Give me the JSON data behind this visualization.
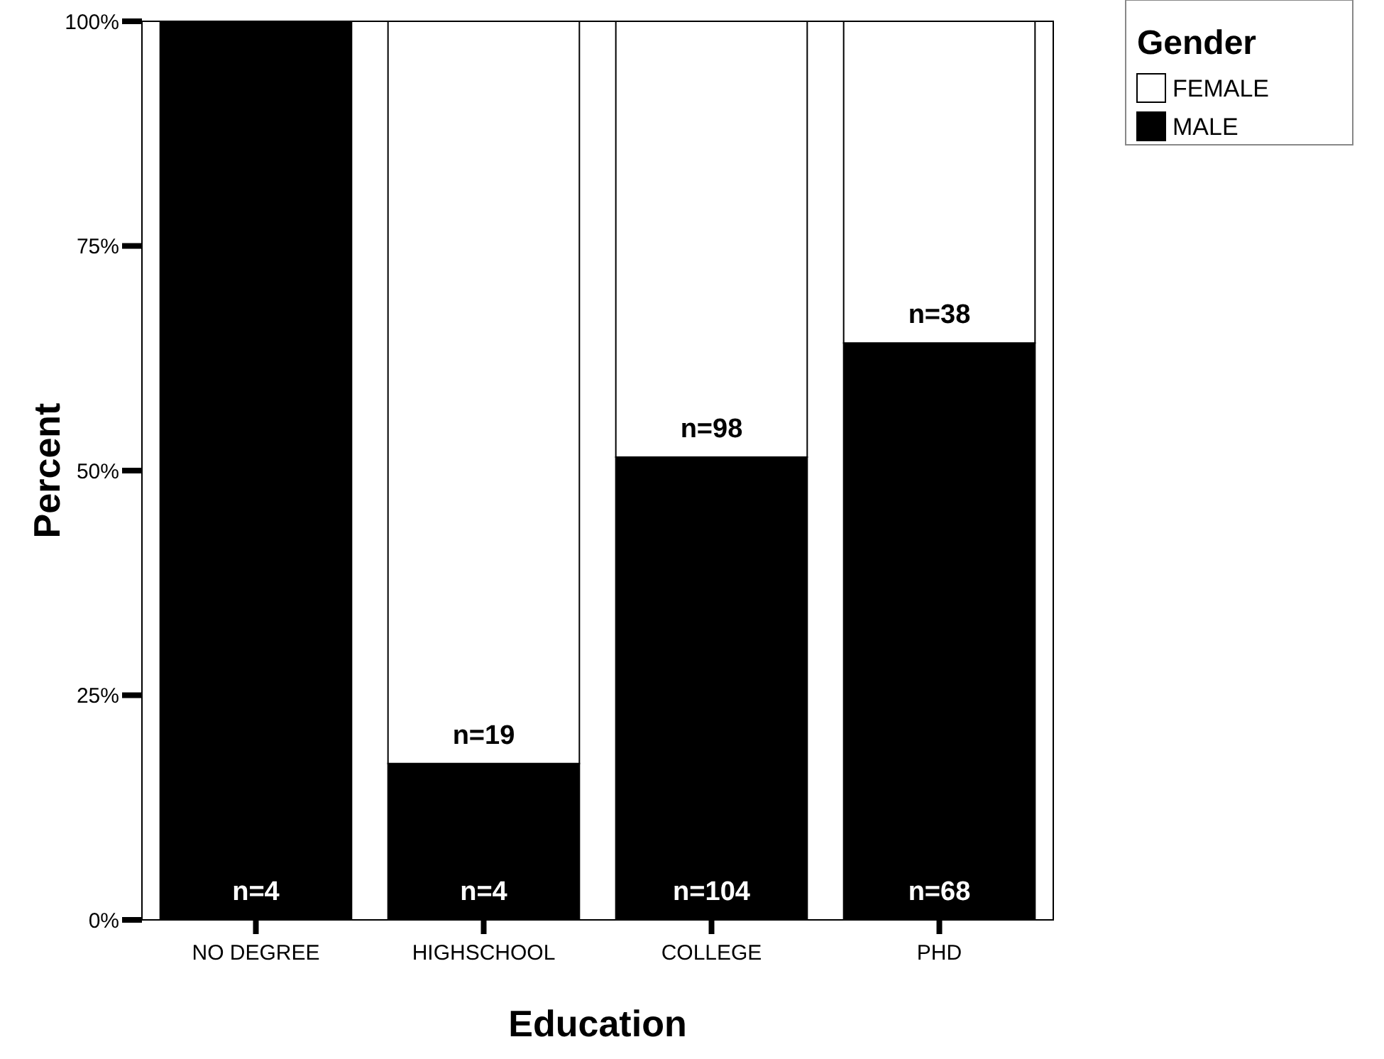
{
  "chart_data": {
    "type": "bar",
    "stacked": true,
    "xlabel": "Education",
    "ylabel": "Percent",
    "legend_title": "Gender",
    "legend": "top right",
    "categories": [
      "NO DEGREE",
      "HIGHSCHOOL",
      "COLLEGE",
      "PHD"
    ],
    "ylim": [
      0,
      100
    ],
    "yticks": [
      {
        "value": 0,
        "label": "0%"
      },
      {
        "value": 25,
        "label": "25%"
      },
      {
        "value": 50,
        "label": "50%"
      },
      {
        "value": 75,
        "label": "75%"
      },
      {
        "value": 100,
        "label": "100%"
      }
    ],
    "grid": false,
    "series": [
      {
        "name": "MALE",
        "color": "#000000",
        "values": [
          100,
          17.4,
          51.5,
          64.2
        ]
      },
      {
        "name": "FEMALE",
        "color": "#ffffff",
        "values": [
          0,
          82.6,
          48.5,
          35.8
        ]
      }
    ],
    "annotations": [
      {
        "text": "n=4",
        "x": "NO DEGREE",
        "y": 0
      },
      {
        "text": "n=4",
        "x": "HIGHSCHOOL",
        "y": 0
      },
      {
        "text": "n=104",
        "x": "COLLEGE",
        "y": 0
      },
      {
        "text": "n=68",
        "x": "PHD",
        "y": 0
      },
      {
        "text": "n=19",
        "x": "HIGHSCHOOL",
        "y": 17.4
      },
      {
        "text": "n=98",
        "x": "COLLEGE",
        "y": 51.5
      },
      {
        "text": "n=38",
        "x": "PHD",
        "y": 64.2
      }
    ]
  }
}
